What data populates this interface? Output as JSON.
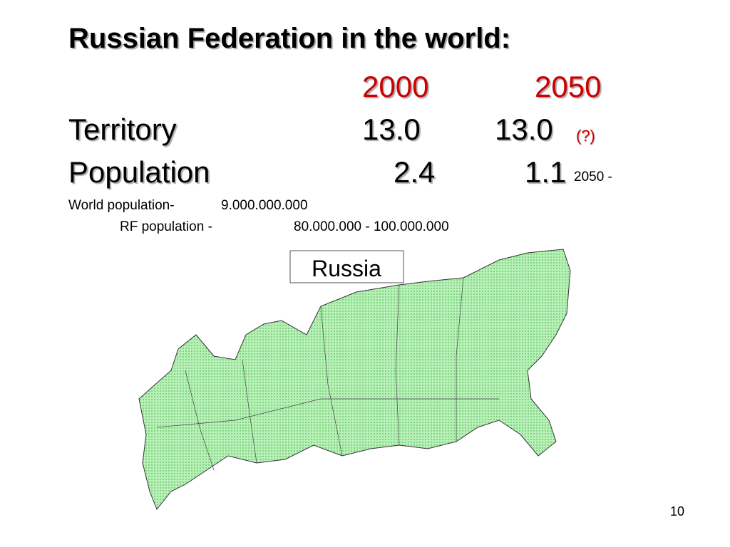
{
  "title": "Russian Federation in the world:",
  "table": {
    "header": [
      "2000",
      "2050"
    ],
    "rows": [
      [
        "Territory",
        "13.0",
        "13.0",
        "(?)"
      ],
      [
        "Population",
        "2.4",
        "1.1",
        "2050 -"
      ]
    ]
  },
  "notes": {
    "world": {
      "label": "World population-",
      "value": "9.000.000.000"
    },
    "rf": {
      "label": "RF population -",
      "value": "80.000.000 - 100.000.000"
    }
  },
  "map_label": "Russia",
  "page_number": "10"
}
